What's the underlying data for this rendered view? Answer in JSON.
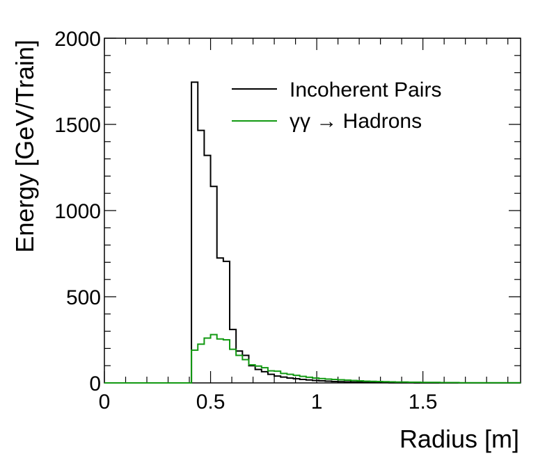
{
  "chart_data": {
    "type": "line",
    "style": "step-histogram",
    "xlabel": "Radius [m]",
    "ylabel": "Energy [GeV/Train]",
    "xlim": [
      0,
      1.96
    ],
    "ylim": [
      0,
      2000
    ],
    "x_ticks": [
      {
        "value": 0,
        "label": "0"
      },
      {
        "value": 0.5,
        "label": "0.5"
      },
      {
        "value": 1,
        "label": "1"
      },
      {
        "value": 1.5,
        "label": "1.5"
      }
    ],
    "y_ticks": [
      {
        "value": 0,
        "label": "0"
      },
      {
        "value": 500,
        "label": "500"
      },
      {
        "value": 1000,
        "label": "1000"
      },
      {
        "value": 1500,
        "label": "1500"
      },
      {
        "value": 2000,
        "label": "2000"
      }
    ],
    "grid": false,
    "legend_position": "top-right",
    "bin_width": 0.03,
    "series": [
      {
        "name": "Incoherent Pairs",
        "color": "#000000",
        "bins": [
          [
            0.0,
            0
          ],
          [
            0.03,
            0
          ],
          [
            0.06,
            0
          ],
          [
            0.09,
            0
          ],
          [
            0.12,
            0
          ],
          [
            0.15,
            0
          ],
          [
            0.18,
            0
          ],
          [
            0.21,
            0
          ],
          [
            0.24,
            0
          ],
          [
            0.27,
            0
          ],
          [
            0.3,
            0
          ],
          [
            0.33,
            0
          ],
          [
            0.36,
            0
          ],
          [
            0.39,
            0
          ],
          [
            0.41,
            1745
          ],
          [
            0.44,
            1465
          ],
          [
            0.47,
            1320
          ],
          [
            0.5,
            1140
          ],
          [
            0.53,
            725
          ],
          [
            0.56,
            705
          ],
          [
            0.59,
            310
          ],
          [
            0.62,
            185
          ],
          [
            0.65,
            160
          ],
          [
            0.68,
            100
          ],
          [
            0.71,
            78
          ],
          [
            0.74,
            65
          ],
          [
            0.77,
            50
          ],
          [
            0.8,
            40
          ],
          [
            0.83,
            34
          ],
          [
            0.86,
            28
          ],
          [
            0.89,
            24
          ],
          [
            0.92,
            20
          ],
          [
            0.95,
            17
          ],
          [
            0.98,
            14
          ],
          [
            1.01,
            12
          ],
          [
            1.04,
            10
          ],
          [
            1.07,
            8
          ],
          [
            1.1,
            7
          ],
          [
            1.13,
            6
          ],
          [
            1.16,
            5
          ],
          [
            1.19,
            4
          ],
          [
            1.22,
            3
          ],
          [
            1.25,
            3
          ],
          [
            1.28,
            2
          ],
          [
            1.31,
            2
          ],
          [
            1.34,
            1
          ],
          [
            1.37,
            1
          ],
          [
            1.4,
            1
          ],
          [
            1.43,
            1
          ],
          [
            1.46,
            0
          ],
          [
            1.49,
            0
          ],
          [
            1.52,
            0
          ],
          [
            1.55,
            0
          ],
          [
            1.58,
            0
          ],
          [
            1.61,
            0
          ],
          [
            1.64,
            0
          ],
          [
            1.67,
            0
          ],
          [
            1.7,
            0
          ],
          [
            1.73,
            0
          ],
          [
            1.76,
            0
          ],
          [
            1.79,
            0
          ],
          [
            1.82,
            0
          ],
          [
            1.85,
            0
          ],
          [
            1.88,
            0
          ],
          [
            1.91,
            0
          ],
          [
            1.94,
            0
          ]
        ]
      },
      {
        "name": "γγ → Hadrons",
        "color": "#119911",
        "bins": [
          [
            0.0,
            0
          ],
          [
            0.03,
            0
          ],
          [
            0.06,
            0
          ],
          [
            0.09,
            0
          ],
          [
            0.12,
            0
          ],
          [
            0.15,
            0
          ],
          [
            0.18,
            0
          ],
          [
            0.21,
            0
          ],
          [
            0.24,
            0
          ],
          [
            0.27,
            0
          ],
          [
            0.3,
            0
          ],
          [
            0.33,
            0
          ],
          [
            0.36,
            0
          ],
          [
            0.39,
            0
          ],
          [
            0.41,
            190
          ],
          [
            0.44,
            225
          ],
          [
            0.47,
            260
          ],
          [
            0.5,
            280
          ],
          [
            0.53,
            255
          ],
          [
            0.56,
            250
          ],
          [
            0.59,
            195
          ],
          [
            0.62,
            160
          ],
          [
            0.65,
            135
          ],
          [
            0.68,
            105
          ],
          [
            0.71,
            98
          ],
          [
            0.74,
            88
          ],
          [
            0.77,
            70
          ],
          [
            0.8,
            68
          ],
          [
            0.83,
            55
          ],
          [
            0.86,
            50
          ],
          [
            0.89,
            44
          ],
          [
            0.92,
            38
          ],
          [
            0.95,
            33
          ],
          [
            0.98,
            28
          ],
          [
            1.01,
            25
          ],
          [
            1.04,
            22
          ],
          [
            1.07,
            20
          ],
          [
            1.1,
            18
          ],
          [
            1.13,
            16
          ],
          [
            1.16,
            14
          ],
          [
            1.19,
            12
          ],
          [
            1.22,
            10
          ],
          [
            1.25,
            9
          ],
          [
            1.28,
            8
          ],
          [
            1.31,
            7
          ],
          [
            1.34,
            6
          ],
          [
            1.37,
            5
          ],
          [
            1.4,
            5
          ],
          [
            1.43,
            4
          ],
          [
            1.46,
            4
          ],
          [
            1.49,
            3
          ],
          [
            1.52,
            3
          ],
          [
            1.55,
            3
          ],
          [
            1.58,
            2
          ],
          [
            1.61,
            2
          ],
          [
            1.64,
            2
          ],
          [
            1.67,
            1
          ],
          [
            1.7,
            1
          ],
          [
            1.73,
            1
          ],
          [
            1.76,
            1
          ],
          [
            1.79,
            1
          ],
          [
            1.82,
            1
          ],
          [
            1.85,
            1
          ],
          [
            1.88,
            1
          ],
          [
            1.91,
            1
          ],
          [
            1.94,
            1
          ]
        ]
      }
    ]
  }
}
